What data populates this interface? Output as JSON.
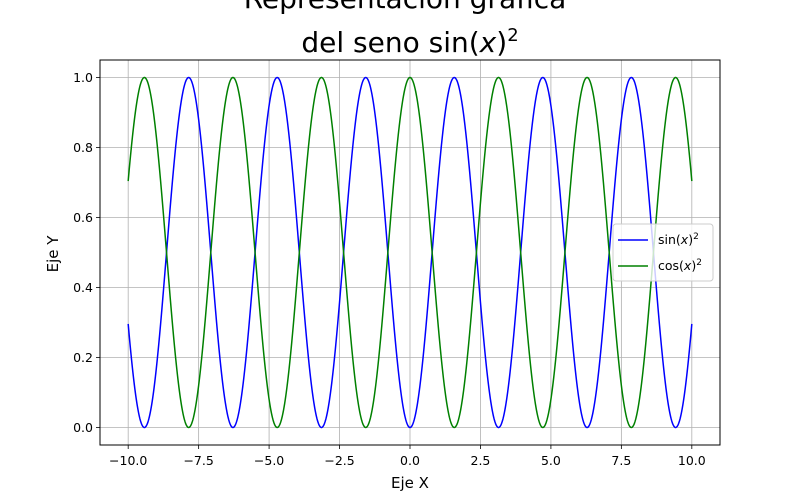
{
  "chart_data": {
    "type": "line",
    "title_line1": "Representación gráfica",
    "title_line2_prefix": "del seno ",
    "title_line2_func": "sin(",
    "title_line2_var": "x",
    "title_line2_close": ")",
    "title_line2_exp": "2",
    "xlabel": "Eje X",
    "ylabel": "Eje Y",
    "xlim": [
      -11.0,
      11.0
    ],
    "ylim": [
      -0.05,
      1.05
    ],
    "xticks": [
      -10.0,
      -7.5,
      -5.0,
      -2.5,
      0.0,
      2.5,
      5.0,
      7.5,
      10.0
    ],
    "xtick_labels": [
      "−10.0",
      "−7.5",
      "−5.0",
      "−2.5",
      "0.0",
      "2.5",
      "5.0",
      "7.5",
      "10.0"
    ],
    "yticks": [
      0.0,
      0.2,
      0.4,
      0.6,
      0.8,
      1.0
    ],
    "ytick_labels": [
      "0.0",
      "0.2",
      "0.4",
      "0.6",
      "0.8",
      "1.0"
    ],
    "grid": true,
    "legend_position": "center-right",
    "x_domain": [
      -10,
      10
    ],
    "series": [
      {
        "name_func": "sin(",
        "name_var": "x",
        "name_close": ")",
        "name_exp": "2",
        "formula": "sin(x)^2",
        "color": "#0000ff"
      },
      {
        "name_func": "cos(",
        "name_var": "x",
        "name_close": ")",
        "name_exp": "2",
        "formula": "cos(x)^2",
        "color": "#008000"
      }
    ]
  }
}
